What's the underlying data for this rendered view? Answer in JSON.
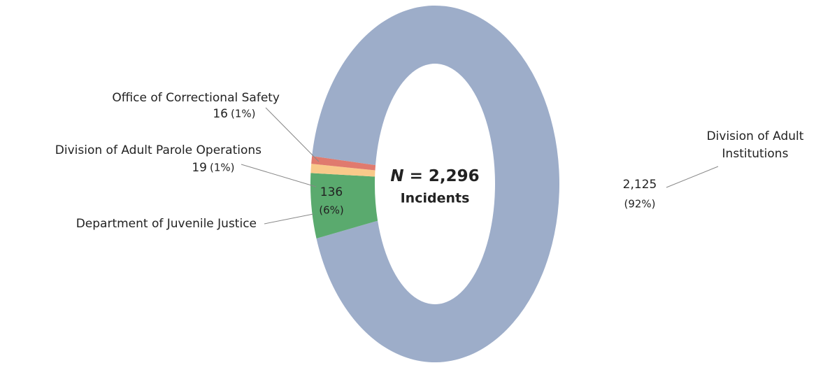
{
  "chart_data": {
    "type": "donut",
    "center_title": "N = 2,296",
    "center_subtitle": "Incidents",
    "categories": [
      "Division of Adult Institutions",
      "Department of Juvenile Justice",
      "Division of Adult Parole Operations",
      "Office of Correctional Safety"
    ],
    "values": [
      2125,
      136,
      19,
      16
    ],
    "value_labels": [
      "2,125",
      "136",
      "19",
      "16"
    ],
    "percent_labels": [
      "(92%)",
      "(6%)",
      "(1%)",
      "(1%)"
    ],
    "colors": [
      "#9dadc9",
      "#5aaa6e",
      "#f9c98a",
      "#e07a6e"
    ]
  }
}
